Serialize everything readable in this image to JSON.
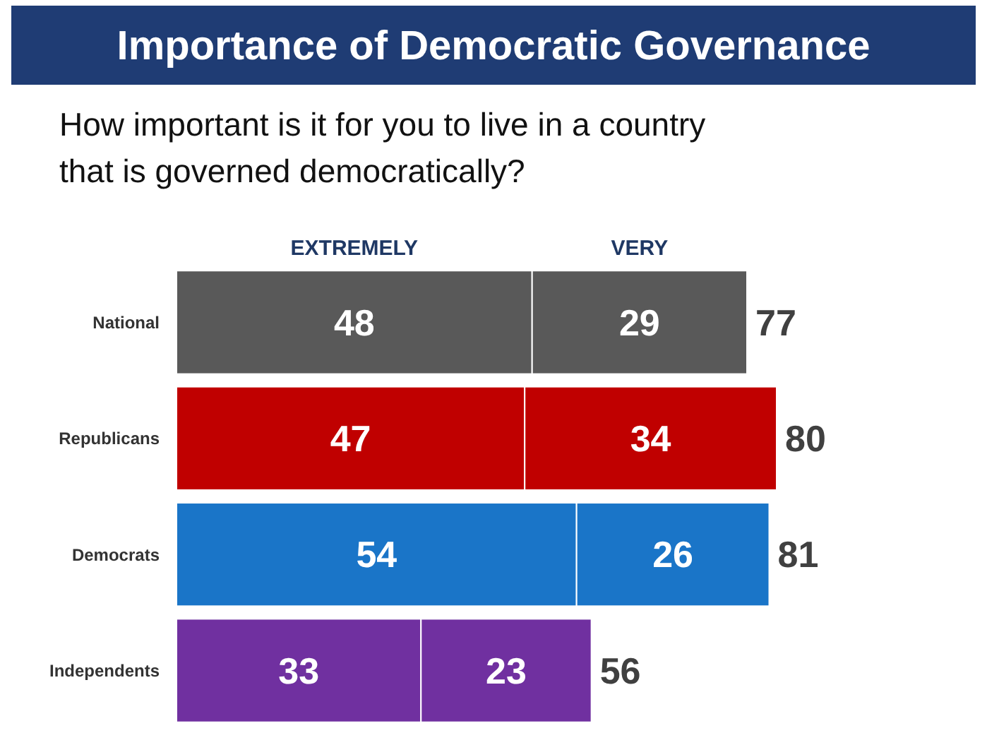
{
  "chart_data": {
    "type": "bar",
    "orientation": "horizontal",
    "stacked": true,
    "title": "Importance of Democratic Governance",
    "subtitle": "How important is it for you to live in a country that is governed democratically?",
    "categories": [
      "National",
      "Republicans",
      "Democrats",
      "Independents"
    ],
    "series": [
      {
        "name": "EXTREMELY",
        "values": [
          48,
          47,
          54,
          33
        ],
        "colors": [
          "#595959",
          "#c00000",
          "#1a75c8",
          "#7030a0"
        ]
      },
      {
        "name": "VERY",
        "values": [
          29,
          34,
          26,
          23
        ],
        "colors": [
          "#595959",
          "#c00000",
          "#1a75c8",
          "#7030a0"
        ]
      }
    ],
    "data_labels": true,
    "totals": [
      "77",
      "80",
      "81",
      "56"
    ]
  }
}
